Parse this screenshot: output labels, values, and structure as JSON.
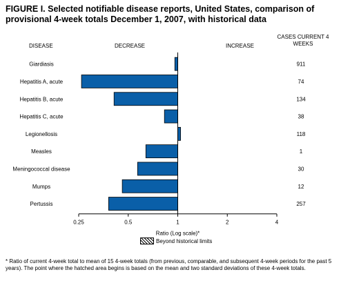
{
  "title": "FIGURE I. Selected notifiable disease reports, United States, comparison of provisional 4-week totals December 1, 2007, with historical data",
  "headers": {
    "disease": "DISEASE",
    "decrease": "DECREASE",
    "increase": "INCREASE",
    "cases": "CASES CURRENT 4 WEEKS"
  },
  "legend": {
    "label": "Beyond historical limits"
  },
  "footnote": "* Ratio of current 4-week total to mean of 15 4-week totals (from previous, comparable, and subsequent 4-week periods for the past 5 years). The point where the hatched area begins is based on the mean and two standard deviations of these 4-week totals.",
  "colors": {
    "bar": "#0a5fa8",
    "bar_stroke": "#000000"
  },
  "chart_data": {
    "type": "bar",
    "orientation": "horizontal",
    "xscale": "log2",
    "xlabel": "Ratio (Log scale)*",
    "xlim": [
      0.25,
      4
    ],
    "baseline": 1,
    "ticks": [
      {
        "value": 0.25,
        "label": "0.25"
      },
      {
        "value": 0.5,
        "label": "0.5"
      },
      {
        "value": 1,
        "label": "1"
      },
      {
        "value": 2,
        "label": "2"
      },
      {
        "value": 4,
        "label": "4"
      }
    ],
    "categories": [
      "Giardiasis",
      "Hepatitis A, acute",
      "Hepatitis B, acute",
      "Hepatitis C, acute",
      "Legionellosis",
      "Measles",
      "Meningococcal disease",
      "Mumps",
      "Pertussis"
    ],
    "values": [
      0.96,
      0.26,
      0.41,
      0.83,
      1.04,
      0.64,
      0.57,
      0.46,
      0.38
    ],
    "cases": [
      911,
      74,
      134,
      38,
      118,
      1,
      30,
      12,
      257
    ]
  }
}
